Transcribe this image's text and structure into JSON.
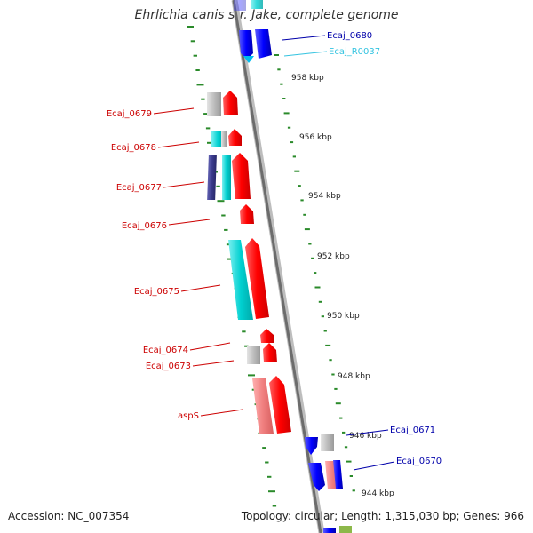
{
  "title": "Ehrlichia canis str. Jake, complete genome",
  "footer": {
    "accession": "Accession: NC_007354",
    "summary": "Topology: circular; Length: 1,315,030 bp; Genes: 966"
  },
  "colors": {
    "backbone": "#7a7a7a",
    "ticks": "#2a8a2a",
    "forward_cds": "#ff0000",
    "reverse_cds": "#0000ff",
    "rna": "#00cccc",
    "pseudo": "#b0b0b0",
    "label_forward": "#cc0000",
    "label_reverse": "#0000aa",
    "label_rna": "#33c3e0",
    "scale_label": "#222222"
  },
  "scale_labels": [
    "958 kbp",
    "956 kbp",
    "954 kbp",
    "952 kbp",
    "950 kbp",
    "948 kbp",
    "946 kbp",
    "944 kbp"
  ],
  "gene_labels": [
    "Ecaj_0680",
    "Ecaj_R0037",
    "Ecaj_0679",
    "Ecaj_0678",
    "Ecaj_0677",
    "Ecaj_0676",
    "Ecaj_0675",
    "Ecaj_0674",
    "Ecaj_0673",
    "aspS",
    "Ecaj_0671",
    "Ecaj_0670"
  ]
}
